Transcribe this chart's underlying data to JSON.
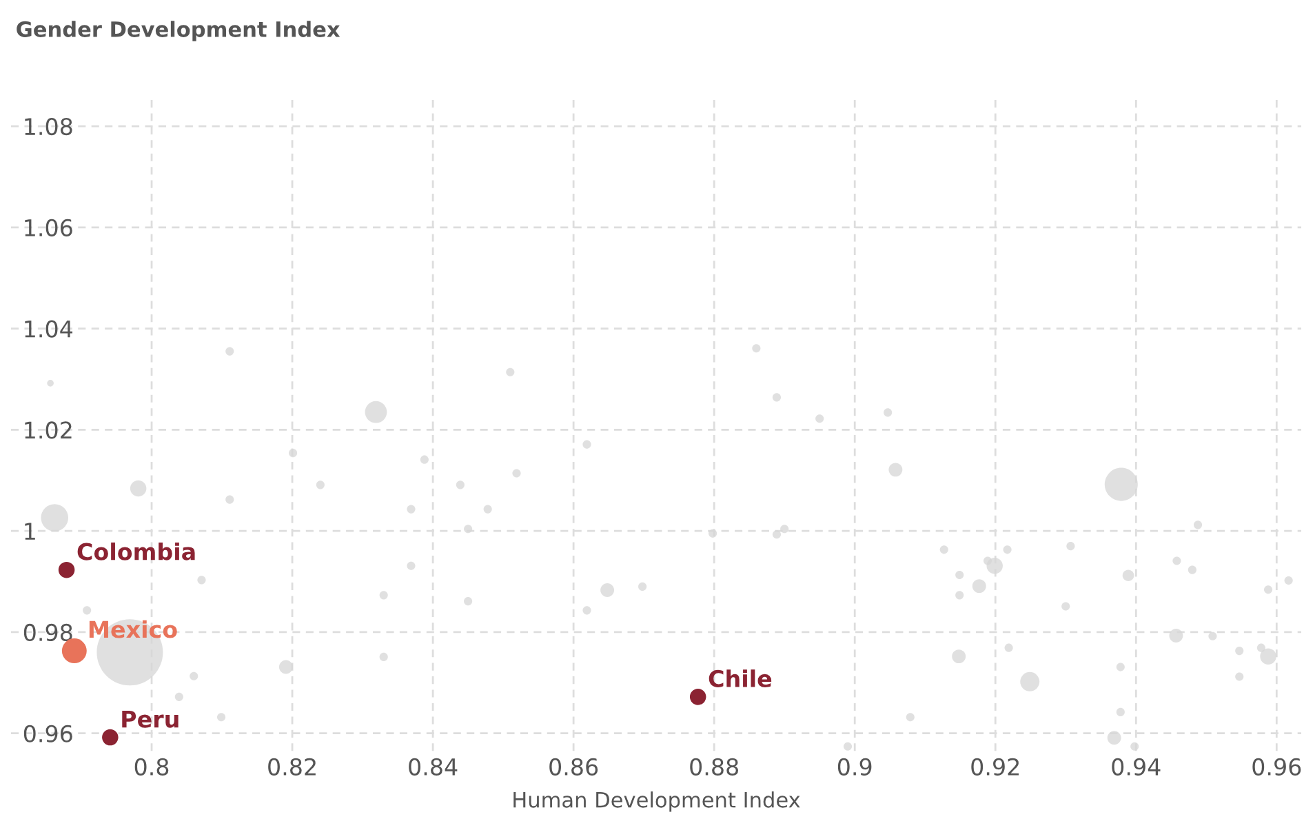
{
  "chart_data": {
    "type": "bubble",
    "xlabel": "Human Development Index",
    "ylabel": "Gender Development Index",
    "xlim": [
      0.78,
      0.9635
    ],
    "ylim": [
      0.9565,
      1.086
    ],
    "xticks": [
      0.8,
      0.82,
      0.84,
      0.86,
      0.88,
      0.9,
      0.92,
      0.94,
      0.96
    ],
    "yticks": [
      0.96,
      0.98,
      1,
      1.02,
      1.04,
      1.06,
      1.08
    ],
    "grid": true,
    "legend": false,
    "marker": "circle",
    "series": [
      {
        "color": "#d6d6d6",
        "x": [
          0.8111,
          0.851,
          0.8319,
          0.8201,
          0.8619,
          0.8388,
          0.7981,
          0.824,
          0.8111,
          0.8439,
          0.8519,
          0.8369,
          0.8478,
          0.845,
          0.7862,
          0.8369,
          0.8071,
          0.833,
          0.845,
          0.8648,
          0.8698,
          0.8619,
          0.7908,
          0.7969,
          0.8191,
          0.833,
          0.806,
          0.8039,
          0.8099,
          0.7856,
          0.886,
          0.8889,
          0.895,
          0.9047,
          0.9058,
          0.9379,
          0.9488,
          0.8798,
          0.8889,
          0.89,
          0.9127,
          0.9217,
          0.9307,
          0.9458,
          0.948,
          0.9189,
          0.9199,
          0.9149,
          0.9389,
          0.9617,
          0.9588,
          0.9177,
          0.9149,
          0.93,
          0.9457,
          0.9509,
          0.9547,
          0.9578,
          0.9588,
          0.9547,
          0.9148,
          0.9219,
          0.9249,
          0.9378,
          0.9378,
          0.9079,
          0.9369,
          0.9398,
          0.899
        ],
        "values": [
          1.0355,
          1.0314,
          1.0235,
          1.0154,
          1.0171,
          1.0141,
          1.0084,
          1.0091,
          1.0062,
          1.0091,
          1.0114,
          1.0043,
          1.0043,
          1.0004,
          1.0026,
          0.9931,
          0.9903,
          0.9873,
          0.9861,
          0.9883,
          0.989,
          0.9843,
          0.9843,
          0.976,
          0.9731,
          0.9751,
          0.9713,
          0.9672,
          0.9632,
          1.0292,
          1.0361,
          1.0264,
          1.0222,
          1.0234,
          1.0121,
          1.0092,
          1.0012,
          0.9995,
          0.9993,
          1.0004,
          0.9963,
          0.9963,
          0.997,
          0.9941,
          0.9923,
          0.9941,
          0.9931,
          0.9913,
          0.9912,
          0.9902,
          0.9884,
          0.9891,
          0.9873,
          0.9851,
          0.9793,
          0.9792,
          0.9763,
          0.9769,
          0.9752,
          0.9712,
          0.9752,
          0.9769,
          0.9702,
          0.9731,
          0.9642,
          0.9632,
          0.9591,
          0.9574,
          0.9574
        ],
        "sizes": [
          0.016,
          0.016,
          0.11,
          0.016,
          0.016,
          0.016,
          0.06,
          0.016,
          0.016,
          0.016,
          0.016,
          0.016,
          0.016,
          0.016,
          0.17,
          0.016,
          0.016,
          0.016,
          0.016,
          0.043,
          0.016,
          0.016,
          0.016,
          1,
          0.043,
          0.016,
          0.016,
          0.016,
          0.016,
          0.01,
          0.016,
          0.016,
          0.016,
          0.016,
          0.043,
          0.25,
          0.016,
          0.016,
          0.016,
          0.016,
          0.016,
          0.016,
          0.016,
          0.016,
          0.016,
          0.016,
          0.06,
          0.016,
          0.03,
          0.016,
          0.016,
          0.043,
          0.016,
          0.016,
          0.043,
          0.016,
          0.016,
          0.016,
          0.06,
          0.016,
          0.043,
          0.016,
          0.085,
          0.016,
          0.016,
          0.016,
          0.043,
          0.016,
          0.016
        ]
      },
      {
        "name": "Colombia",
        "color": "#8b2332",
        "x": [
          0.7879
        ],
        "values": [
          0.9923
        ],
        "sizes": [
          0.06
        ]
      },
      {
        "name": "Mexico",
        "color": "#e8735a",
        "x": [
          0.789
        ],
        "values": [
          0.9763
        ],
        "sizes": [
          0.14
        ]
      },
      {
        "name": "Peru",
        "color": "#8b2332",
        "x": [
          0.7941
        ],
        "values": [
          0.9592
        ],
        "sizes": [
          0.06
        ]
      },
      {
        "name": "Chile",
        "color": "#8b2332",
        "x": [
          0.8777
        ],
        "values": [
          0.9672
        ],
        "sizes": [
          0.06
        ]
      }
    ]
  }
}
